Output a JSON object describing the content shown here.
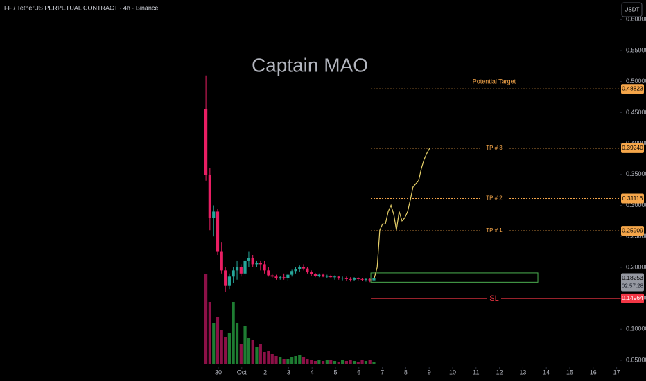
{
  "header": {
    "symbol": "FF / TetherUS PERPETUAL CONTRACT · 4h · Binance",
    "currency_button": "USDT"
  },
  "chart_data": {
    "type": "candlestick",
    "title": "Captain MAO",
    "up_color": "#26a69a",
    "down_color": "#e91e63",
    "up_volume_color": "#1e7d32",
    "down_volume_color": "#8c1047",
    "xlim": [
      -9.32,
      17.16
    ],
    "ylim": [
      0.0164,
      0.6317
    ],
    "xticks": [
      {
        "value": 0,
        "label": "30"
      },
      {
        "value": 1,
        "label": "Oct"
      },
      2,
      3,
      4,
      5,
      6,
      7,
      8,
      9,
      10,
      11,
      12,
      13,
      14,
      15,
      16,
      17
    ],
    "yticks": [
      {
        "value": 0.6,
        "label": "0.60000"
      },
      {
        "value": 0.55,
        "label": "0.55000"
      },
      {
        "value": 0.5,
        "label": "0.50000"
      },
      {
        "value": 0.45,
        "label": "0.45000"
      },
      {
        "value": 0.4,
        "label": "0.40000"
      },
      {
        "value": 0.35,
        "label": "0.35000"
      },
      {
        "value": 0.3,
        "label": "0.30000"
      },
      {
        "value": 0.25,
        "label": "0.25000"
      },
      {
        "value": 0.2,
        "label": "0.20000"
      },
      {
        "value": 0.15,
        "label": "0.15000"
      },
      {
        "value": 0.1,
        "label": "0.10000"
      },
      {
        "value": 0.05,
        "label": "0.05000"
      }
    ],
    "x": [
      -0.53,
      -0.36,
      -0.2,
      -0.03,
      0.14,
      0.3,
      0.47,
      0.64,
      0.8,
      0.97,
      1.14,
      1.3,
      1.47,
      1.64,
      1.8,
      1.97,
      2.14,
      2.3,
      2.47,
      2.64,
      2.8,
      2.97,
      3.14,
      3.3,
      3.47,
      3.64,
      3.8,
      3.97,
      4.14,
      4.3,
      4.47,
      4.64,
      4.8,
      4.97,
      5.14,
      5.3,
      5.47,
      5.64,
      5.8,
      5.97,
      6.14,
      6.3,
      6.47,
      6.64
    ],
    "open": [
      0.456,
      0.349,
      0.28,
      0.29,
      0.225,
      0.195,
      0.17,
      0.185,
      0.195,
      0.2,
      0.19,
      0.21,
      0.215,
      0.205,
      0.207,
      0.205,
      0.195,
      0.187,
      0.185,
      0.183,
      0.184,
      0.182,
      0.188,
      0.194,
      0.197,
      0.2,
      0.198,
      0.192,
      0.189,
      0.186,
      0.188,
      0.185,
      0.186,
      0.184,
      0.185,
      0.182,
      0.183,
      0.181,
      0.18,
      0.1825,
      0.181,
      0.18,
      0.181,
      0.179
    ],
    "high": [
      0.51,
      0.36,
      0.3,
      0.295,
      0.24,
      0.2,
      0.19,
      0.2,
      0.21,
      0.205,
      0.215,
      0.225,
      0.22,
      0.21,
      0.21,
      0.21,
      0.2,
      0.19,
      0.188,
      0.186,
      0.19,
      0.19,
      0.196,
      0.2,
      0.203,
      0.205,
      0.2,
      0.195,
      0.191,
      0.19,
      0.19,
      0.188,
      0.188,
      0.187,
      0.186,
      0.185,
      0.185,
      0.184,
      0.184,
      0.184,
      0.183,
      0.183,
      0.182,
      0.184
    ],
    "low": [
      0.34,
      0.26,
      0.25,
      0.22,
      0.19,
      0.16,
      0.165,
      0.175,
      0.18,
      0.185,
      0.185,
      0.2,
      0.2,
      0.2,
      0.195,
      0.19,
      0.185,
      0.182,
      0.18,
      0.18,
      0.18,
      0.178,
      0.185,
      0.19,
      0.193,
      0.195,
      0.19,
      0.186,
      0.184,
      0.184,
      0.184,
      0.183,
      0.182,
      0.18,
      0.18,
      0.179,
      0.178,
      0.177,
      0.178,
      0.179,
      0.178,
      0.177,
      0.176,
      0.177
    ],
    "close": [
      0.349,
      0.28,
      0.29,
      0.225,
      0.195,
      0.17,
      0.185,
      0.195,
      0.2,
      0.19,
      0.21,
      0.215,
      0.205,
      0.207,
      0.205,
      0.195,
      0.187,
      0.185,
      0.183,
      0.184,
      0.182,
      0.188,
      0.194,
      0.197,
      0.2,
      0.198,
      0.192,
      0.189,
      0.186,
      0.188,
      0.185,
      0.186,
      0.184,
      0.185,
      0.182,
      0.183,
      0.181,
      0.18,
      0.1825,
      0.181,
      0.18,
      0.181,
      0.179,
      0.1825
    ],
    "volume": [
      130,
      90,
      60,
      68,
      50,
      40,
      45,
      90,
      60,
      30,
      55,
      38,
      35,
      25,
      30,
      18,
      20,
      15,
      12,
      10,
      8,
      8,
      10,
      12,
      14,
      10,
      8,
      6,
      5,
      6,
      5,
      7,
      6,
      5,
      4,
      6,
      5,
      7,
      5,
      4,
      6,
      5,
      6,
      4
    ],
    "projection": {
      "color": "#e8d26a",
      "x": [
        6.66,
        6.78,
        6.89,
        7.01,
        7.13,
        7.25,
        7.37,
        7.49,
        7.6,
        7.72,
        7.84,
        7.96,
        8.08,
        8.2,
        8.31,
        8.43,
        8.55,
        8.67,
        8.79,
        8.91,
        9.02
      ],
      "values": [
        0.183,
        0.2,
        0.26,
        0.27,
        0.27,
        0.29,
        0.3,
        0.285,
        0.26,
        0.29,
        0.275,
        0.28,
        0.29,
        0.31,
        0.33,
        0.335,
        0.34,
        0.36,
        0.375,
        0.385,
        0.3924
      ]
    },
    "entry_zone": {
      "x": [
        6.51,
        13.64
      ],
      "values": [
        0.176,
        0.191
      ],
      "color": "#4caf50"
    },
    "levels": [
      {
        "name": "Potential Target",
        "value": 0.48823,
        "value_label": "0.48823",
        "color": "#f5a64a",
        "style": "dotted",
        "label_position": "above"
      },
      {
        "name": "TP # 3",
        "value": 0.3924,
        "value_label": "0.39240",
        "color": "#f5a64a",
        "style": "dotted",
        "label_position": "on"
      },
      {
        "name": "TP # 2",
        "value": 0.31116,
        "value_label": "0.31116",
        "color": "#f5a64a",
        "style": "dotted",
        "label_position": "on"
      },
      {
        "name": "TP # 1",
        "value": 0.25909,
        "value_label": "0.25909",
        "color": "#f5a64a",
        "style": "dotted",
        "label_position": "on"
      },
      {
        "name": "SL",
        "value": 0.14964,
        "value_label": "0.14964",
        "color": "#f23645",
        "style": "solid",
        "label_position": "on"
      }
    ],
    "level_start_x": 6.51,
    "last_price": {
      "value": 0.18253,
      "value_label": "0.18253",
      "countdown": "02:57:28",
      "color": "#9598a1"
    }
  }
}
